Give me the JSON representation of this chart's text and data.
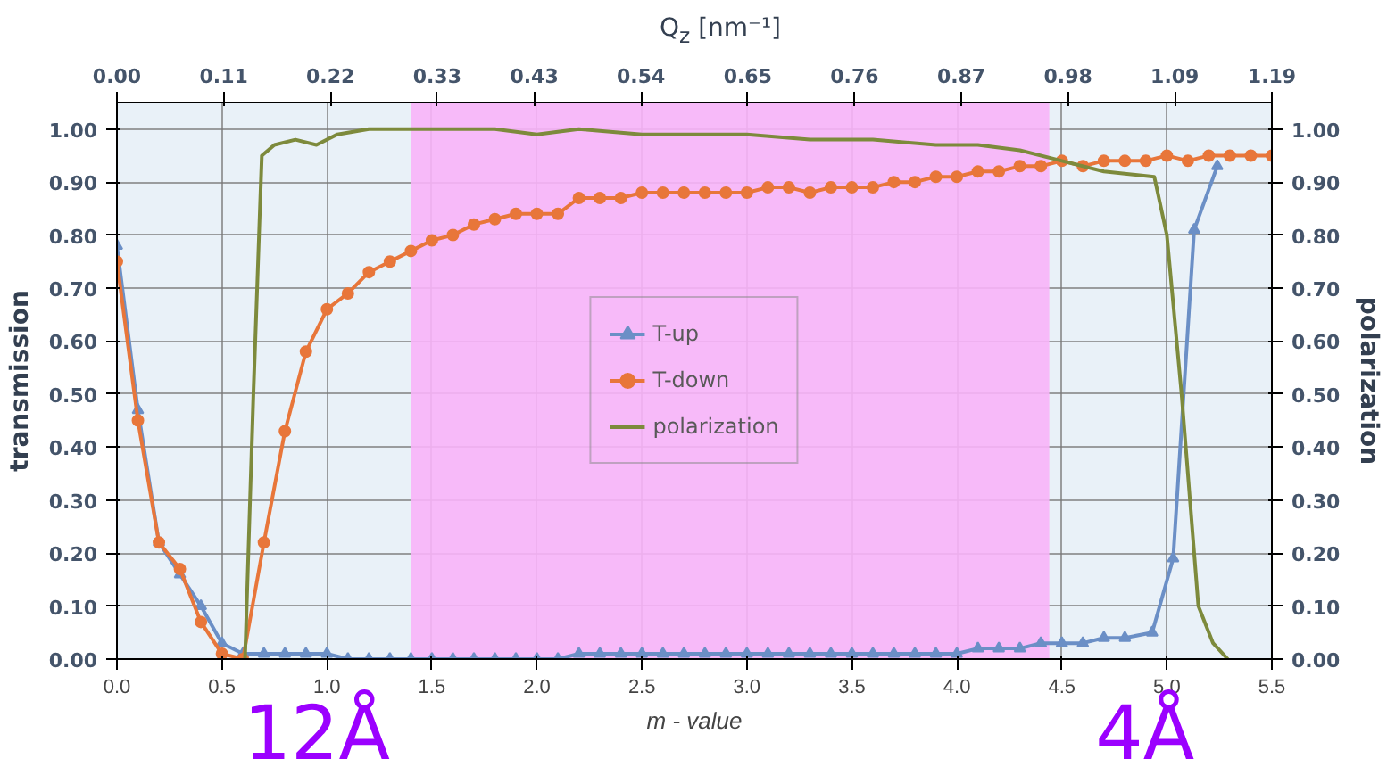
{
  "chart_data": {
    "type": "line",
    "xlabel": "m - value",
    "ylabel": "transmission",
    "y2label": "polarization",
    "x2label": "Q$_{z}$ [nm⁻¹]",
    "xlim": [
      0,
      5.5
    ],
    "xticks": [
      {
        "value": 0,
        "label": "0.0"
      },
      {
        "value": 0.5,
        "label": "0.5"
      },
      {
        "value": 1,
        "label": "1.0"
      },
      {
        "value": 1.5,
        "label": "1.5"
      },
      {
        "value": 2,
        "label": "2.0"
      },
      {
        "value": 2.5,
        "label": "2.5"
      },
      {
        "value": 3,
        "label": "3.0"
      },
      {
        "value": 3.5,
        "label": "3.5"
      },
      {
        "value": 4,
        "label": "4.0"
      },
      {
        "value": 4.5,
        "label": "4.5"
      },
      {
        "value": 5,
        "label": "5.0"
      },
      {
        "value": 5.5,
        "label": "5.5"
      }
    ],
    "x2lim": [
      0,
      1.19
    ],
    "x2ticks": [
      {
        "value": 0,
        "label": "0.00"
      },
      0.11,
      0.22,
      0.33,
      0.43,
      0.54,
      0.65,
      0.76,
      0.87,
      0.98,
      1.09,
      1.19
    ],
    "ylim": [
      0,
      1.05
    ],
    "yticks": [
      {
        "value": 0,
        "label": "0.00"
      },
      {
        "value": 0.1,
        "label": "0.10"
      },
      {
        "value": 0.2,
        "label": "0.20"
      },
      {
        "value": 0.3,
        "label": "0.30"
      },
      {
        "value": 0.4,
        "label": "0.40"
      },
      {
        "value": 0.5,
        "label": "0.50"
      },
      {
        "value": 0.6,
        "label": "0.60"
      },
      {
        "value": 0.7,
        "label": "0.70"
      },
      {
        "value": 0.8,
        "label": "0.80"
      },
      {
        "value": 0.9,
        "label": "0.90"
      },
      {
        "value": 1,
        "label": "1.00"
      }
    ],
    "y2lim": [
      0,
      1.05
    ],
    "y2ticks": [
      {
        "value": 0,
        "label": "0.00"
      },
      {
        "value": 0.1,
        "label": "0.10"
      },
      {
        "value": 0.2,
        "label": "0.20"
      },
      {
        "value": 0.3,
        "label": "0.30"
      },
      {
        "value": 0.4,
        "label": "0.40"
      },
      {
        "value": 0.5,
        "label": "0.50"
      },
      {
        "value": 0.6,
        "label": "0.60"
      },
      {
        "value": 0.7,
        "label": "0.70"
      },
      {
        "value": 0.8,
        "label": "0.80"
      },
      {
        "value": 0.9,
        "label": "0.90"
      },
      {
        "value": 1,
        "label": "1.00"
      }
    ],
    "grid": true,
    "legend": "center",
    "line_style": "solid",
    "bands": [
      {
        "axis": "x",
        "from": 1.4,
        "to": 4.44,
        "color": "#f8b4f8"
      }
    ],
    "annotations": [
      "12Å",
      "4Å"
    ],
    "series": [
      {
        "name": "T-up",
        "color": "#6b8fc6",
        "marker": "triangle",
        "x": [
          0,
          0.1,
          0.2,
          0.3,
          0.4,
          0.5,
          0.6,
          0.7,
          0.8,
          0.9,
          1.0,
          1.1,
          1.2,
          1.3,
          1.4,
          1.5,
          1.6,
          1.7,
          1.8,
          1.9,
          2.0,
          2.1,
          2.2,
          2.3,
          2.4,
          2.5,
          2.6,
          2.7,
          2.8,
          2.9,
          3.0,
          3.1,
          3.2,
          3.3,
          3.4,
          3.5,
          3.6,
          3.7,
          3.8,
          3.9,
          4.0,
          4.1,
          4.2,
          4.3,
          4.4,
          4.5,
          4.6,
          4.7,
          4.8,
          4.93,
          5.03,
          5.13,
          5.24
        ],
        "values": [
          0.78,
          0.47,
          0.22,
          0.16,
          0.1,
          0.03,
          0.01,
          0.01,
          0.01,
          0.01,
          0.01,
          0.0,
          0.0,
          0.0,
          0.0,
          0.0,
          0.0,
          0.0,
          0.0,
          0.0,
          0.0,
          0.0,
          0.01,
          0.01,
          0.01,
          0.01,
          0.01,
          0.01,
          0.01,
          0.01,
          0.01,
          0.01,
          0.01,
          0.01,
          0.01,
          0.01,
          0.01,
          0.01,
          0.01,
          0.01,
          0.01,
          0.02,
          0.02,
          0.02,
          0.03,
          0.03,
          0.03,
          0.04,
          0.04,
          0.05,
          0.19,
          0.81,
          0.93
        ]
      },
      {
        "name": "T-down",
        "color": "#e8763a",
        "marker": "circle",
        "x": [
          0,
          0.1,
          0.2,
          0.3,
          0.4,
          0.5,
          0.6,
          0.7,
          0.8,
          0.9,
          1.0,
          1.1,
          1.2,
          1.3,
          1.4,
          1.5,
          1.6,
          1.7,
          1.8,
          1.9,
          2.0,
          2.1,
          2.2,
          2.3,
          2.4,
          2.5,
          2.6,
          2.7,
          2.8,
          2.9,
          3.0,
          3.1,
          3.2,
          3.3,
          3.4,
          3.5,
          3.6,
          3.7,
          3.8,
          3.9,
          4.0,
          4.1,
          4.2,
          4.3,
          4.4,
          4.5,
          4.6,
          4.7,
          4.8,
          4.9,
          5.0,
          5.1,
          5.2,
          5.3,
          5.4,
          5.5
        ],
        "values": [
          0.75,
          0.45,
          0.22,
          0.17,
          0.07,
          0.01,
          0.0,
          0.22,
          0.43,
          0.58,
          0.66,
          0.69,
          0.73,
          0.75,
          0.77,
          0.79,
          0.8,
          0.82,
          0.83,
          0.84,
          0.84,
          0.84,
          0.87,
          0.87,
          0.87,
          0.88,
          0.88,
          0.88,
          0.88,
          0.88,
          0.88,
          0.89,
          0.89,
          0.88,
          0.89,
          0.89,
          0.89,
          0.9,
          0.9,
          0.91,
          0.91,
          0.92,
          0.92,
          0.93,
          0.93,
          0.94,
          0.93,
          0.94,
          0.94,
          0.94,
          0.95,
          0.94,
          0.95,
          0.95,
          0.95,
          0.95
        ]
      },
      {
        "name": "polarization",
        "color": "#7d8a3c",
        "marker": "none",
        "axis": "y2",
        "x": [
          0.61,
          0.65,
          0.69,
          0.75,
          0.85,
          0.95,
          1.05,
          1.2,
          1.5,
          1.8,
          2.0,
          2.2,
          2.5,
          2.8,
          3.0,
          3.3,
          3.6,
          3.9,
          4.1,
          4.3,
          4.5,
          4.7,
          4.94,
          5.0,
          5.07,
          5.15,
          5.22,
          5.29
        ],
        "values": [
          0.0,
          0.5,
          0.95,
          0.97,
          0.98,
          0.97,
          0.99,
          1.0,
          1.0,
          1.0,
          0.99,
          1.0,
          0.99,
          0.99,
          0.99,
          0.98,
          0.98,
          0.97,
          0.97,
          0.96,
          0.94,
          0.92,
          0.91,
          0.8,
          0.5,
          0.1,
          0.03,
          0.0
        ]
      }
    ]
  }
}
